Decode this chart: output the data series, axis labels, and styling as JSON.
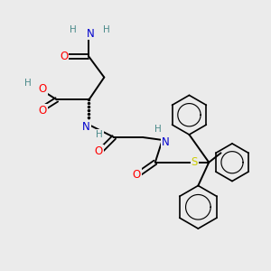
{
  "bg_color": "#ebebeb",
  "atom_colors": {
    "O": "#ff0000",
    "N": "#0000cc",
    "S": "#cccc00",
    "C": "#000000",
    "H": "#4a8a8a"
  },
  "bond_color": "#000000",
  "figsize": [
    3.0,
    3.0
  ],
  "dpi": 100
}
